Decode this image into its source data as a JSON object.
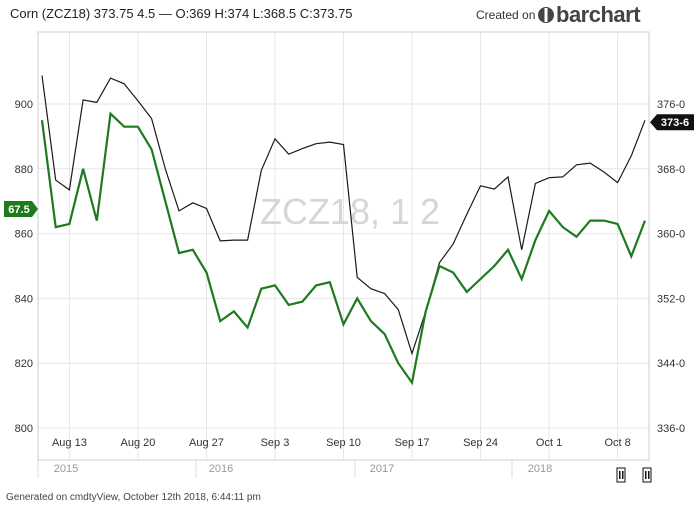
{
  "header": {
    "symbol_line": "Corn (ZCZ18) 373.75 4.5 — O:369 H:374 L:368.5 C:373.75",
    "created_on": "Created on",
    "brand": "barchart"
  },
  "watermark": "ZCZ18, 1 2",
  "footer": "Generated on cmdtyView, October 12th 2018, 6:44:11 pm",
  "colors": {
    "black_series": "#1a1a1a",
    "green_series": "#1f7a1f",
    "grid": "#e6e6e6",
    "badge_dark": "#111111",
    "badge_green": "#1f7a1f"
  },
  "chart_data": {
    "type": "line",
    "x_ticks": [
      "Aug 13",
      "Aug 20",
      "Aug 27",
      "Sep 3",
      "Sep 10",
      "Sep 17",
      "Sep 24",
      "Oct 1",
      "Oct 8"
    ],
    "x_tick_index": [
      2,
      7,
      12,
      17,
      22,
      27,
      32,
      37,
      42
    ],
    "year_labels": [
      "2015",
      "2016",
      "2017",
      "2018"
    ],
    "left_axis": {
      "ticks": [
        800,
        820,
        840,
        860,
        880,
        900
      ],
      "range": [
        800,
        910
      ]
    },
    "right_axis": {
      "ticks": [
        "336-0",
        "344-0",
        "352-0",
        "360-0",
        "368-0",
        "376-0"
      ],
      "values": [
        336,
        344,
        352,
        360,
        368,
        376
      ],
      "range": [
        336,
        380
      ]
    },
    "series": [
      {
        "axis": "right",
        "color": "#1a1a1a",
        "values": [
          379.5,
          366.6,
          365.4,
          376.5,
          376.2,
          379.2,
          378.5,
          376.4,
          374.2,
          368.0,
          362.8,
          363.8,
          363.1,
          359.1,
          359.2,
          359.2,
          367.8,
          371.7,
          369.8,
          370.5,
          371.1,
          371.3,
          371.0,
          354.6,
          353.2,
          352.6,
          350.6,
          345.2,
          350.4,
          356.4,
          358.7,
          362.4,
          365.9,
          365.5,
          367.0,
          358.0,
          366.2,
          366.9,
          367.0,
          368.5,
          368.7,
          367.6,
          366.3,
          369.6,
          374.0
        ],
        "last_label": "373-6"
      },
      {
        "axis": "left",
        "color": "#1f7a1f",
        "values": [
          895,
          862,
          863,
          880,
          864,
          897,
          893,
          893,
          886,
          870,
          854,
          855,
          848,
          833,
          836,
          831,
          843,
          844,
          838,
          839,
          844,
          845,
          832,
          840,
          833,
          829,
          820,
          814,
          836,
          850,
          848,
          842,
          846,
          850,
          855,
          846,
          858,
          867,
          862,
          859,
          864,
          864,
          863,
          853,
          864
        ],
        "first_label": "67.5"
      }
    ]
  },
  "scroller": {
    "handle_left": "Ⅱ",
    "handle_right": "Ⅱ"
  }
}
